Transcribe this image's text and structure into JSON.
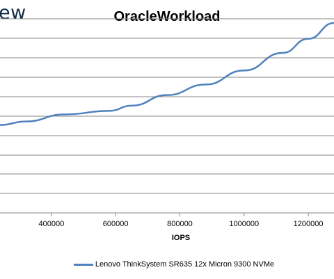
{
  "brand_text": "ew",
  "chart_data": {
    "type": "line",
    "title": "OracleWorkload",
    "xlabel": "IOPS",
    "ylabel": "",
    "xlim": [
      240000,
      1280000
    ],
    "x_ticks": [
      400000,
      600000,
      800000,
      1000000,
      1200000
    ],
    "grid": "horizontal",
    "legend_placement": "bottom",
    "series": [
      {
        "name": "Lenovo ThinkSystem SR635 12x Micron 9300 NVMe",
        "color": "#4f81bd",
        "x": [
          240000,
          320000,
          440000,
          580000,
          650000,
          760000,
          880000,
          1000000,
          1120000,
          1200000,
          1280000
        ],
        "y": [
          0.5,
          0.52,
          0.56,
          0.58,
          0.61,
          0.67,
          0.73,
          0.81,
          0.91,
          0.99,
          1.08
        ]
      }
    ]
  }
}
